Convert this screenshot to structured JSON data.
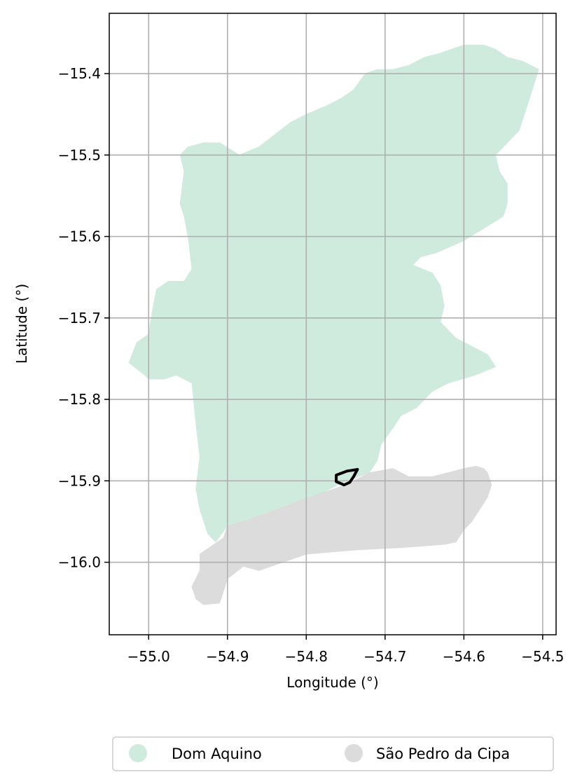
{
  "chart_data": {
    "type": "map",
    "xlabel": "Longitude (°)",
    "ylabel": "Latitude (°)",
    "xlim": [
      -55.05,
      -54.483
    ],
    "ylim": [
      -16.089,
      -15.326
    ],
    "grid": true,
    "x_ticks": [
      {
        "value": -55.0,
        "label": "−55.0"
      },
      {
        "value": -54.9,
        "label": "−54.9"
      },
      {
        "value": -54.8,
        "label": "−54.8"
      },
      {
        "value": -54.7,
        "label": "−54.7"
      },
      {
        "value": -54.6,
        "label": "−54.6"
      },
      {
        "value": -54.5,
        "label": "−54.5"
      }
    ],
    "y_ticks": [
      {
        "value": -15.4,
        "label": "−15.4"
      },
      {
        "value": -15.5,
        "label": "−15.5"
      },
      {
        "value": -15.6,
        "label": "−15.6"
      },
      {
        "value": -15.7,
        "label": "−15.7"
      },
      {
        "value": -15.8,
        "label": "−15.8"
      },
      {
        "value": -15.9,
        "label": "−15.9"
      },
      {
        "value": -16.0,
        "label": "−16.0"
      }
    ],
    "legend_position": "bottom-center",
    "regions": [
      {
        "name": "Dom Aquino",
        "color": "#cfebde",
        "outline": [
          [
            -54.95,
            -15.49
          ],
          [
            -54.93,
            -15.485
          ],
          [
            -54.91,
            -15.485
          ],
          [
            -54.885,
            -15.5
          ],
          [
            -54.86,
            -15.49
          ],
          [
            -54.84,
            -15.475
          ],
          [
            -54.82,
            -15.46
          ],
          [
            -54.8,
            -15.45
          ],
          [
            -54.775,
            -15.44
          ],
          [
            -54.755,
            -15.43
          ],
          [
            -54.74,
            -15.42
          ],
          [
            -54.725,
            -15.4
          ],
          [
            -54.71,
            -15.395
          ],
          [
            -54.69,
            -15.395
          ],
          [
            -54.67,
            -15.39
          ],
          [
            -54.65,
            -15.38
          ],
          [
            -54.63,
            -15.375
          ],
          [
            -54.6,
            -15.365
          ],
          [
            -54.575,
            -15.365
          ],
          [
            -54.56,
            -15.37
          ],
          [
            -54.545,
            -15.38
          ],
          [
            -54.525,
            -15.385
          ],
          [
            -54.505,
            -15.395
          ],
          [
            -54.51,
            -15.41
          ],
          [
            -54.52,
            -15.44
          ],
          [
            -54.53,
            -15.47
          ],
          [
            -54.55,
            -15.49
          ],
          [
            -54.56,
            -15.5
          ],
          [
            -54.555,
            -15.52
          ],
          [
            -54.545,
            -15.535
          ],
          [
            -54.545,
            -15.56
          ],
          [
            -54.55,
            -15.575
          ],
          [
            -54.575,
            -15.59
          ],
          [
            -54.6,
            -15.605
          ],
          [
            -54.635,
            -15.62
          ],
          [
            -54.655,
            -15.625
          ],
          [
            -54.665,
            -15.635
          ],
          [
            -54.64,
            -15.645
          ],
          [
            -54.63,
            -15.66
          ],
          [
            -54.625,
            -15.685
          ],
          [
            -54.63,
            -15.705
          ],
          [
            -54.61,
            -15.725
          ],
          [
            -54.59,
            -15.735
          ],
          [
            -54.57,
            -15.745
          ],
          [
            -54.56,
            -15.76
          ],
          [
            -54.585,
            -15.77
          ],
          [
            -54.62,
            -15.78
          ],
          [
            -54.64,
            -15.79
          ],
          [
            -54.66,
            -15.81
          ],
          [
            -54.68,
            -15.82
          ],
          [
            -54.69,
            -15.835
          ],
          [
            -54.705,
            -15.855
          ],
          [
            -54.71,
            -15.875
          ],
          [
            -54.72,
            -15.89
          ],
          [
            -54.75,
            -15.9
          ],
          [
            -54.78,
            -15.915
          ],
          [
            -54.81,
            -15.925
          ],
          [
            -54.85,
            -15.94
          ],
          [
            -54.88,
            -15.95
          ],
          [
            -54.9,
            -15.955
          ],
          [
            -54.915,
            -15.975
          ],
          [
            -54.925,
            -15.965
          ],
          [
            -54.935,
            -15.935
          ],
          [
            -54.94,
            -15.91
          ],
          [
            -54.935,
            -15.87
          ],
          [
            -54.94,
            -15.83
          ],
          [
            -54.945,
            -15.78
          ],
          [
            -54.965,
            -15.77
          ],
          [
            -54.98,
            -15.775
          ],
          [
            -55.0,
            -15.775
          ],
          [
            -55.005,
            -15.77
          ],
          [
            -55.025,
            -15.755
          ],
          [
            -55.015,
            -15.73
          ],
          [
            -55.0,
            -15.72
          ],
          [
            -54.995,
            -15.69
          ],
          [
            -54.99,
            -15.665
          ],
          [
            -54.975,
            -15.655
          ],
          [
            -54.955,
            -15.655
          ],
          [
            -54.945,
            -15.64
          ],
          [
            -54.95,
            -15.6
          ],
          [
            -54.955,
            -15.575
          ],
          [
            -54.96,
            -15.56
          ],
          [
            -54.955,
            -15.52
          ],
          [
            -54.96,
            -15.5
          ]
        ]
      },
      {
        "name": "São Pedro da Cipa",
        "color": "#dcdcdc",
        "outline": [
          [
            -54.9,
            -15.955
          ],
          [
            -54.88,
            -15.95
          ],
          [
            -54.85,
            -15.94
          ],
          [
            -54.81,
            -15.925
          ],
          [
            -54.78,
            -15.915
          ],
          [
            -54.75,
            -15.905
          ],
          [
            -54.72,
            -15.89
          ],
          [
            -54.69,
            -15.885
          ],
          [
            -54.67,
            -15.895
          ],
          [
            -54.64,
            -15.895
          ],
          [
            -54.62,
            -15.89
          ],
          [
            -54.6,
            -15.885
          ],
          [
            -54.585,
            -15.882
          ],
          [
            -54.575,
            -15.885
          ],
          [
            -54.57,
            -15.89
          ],
          [
            -54.565,
            -15.905
          ],
          [
            -54.57,
            -15.92
          ],
          [
            -54.58,
            -15.935
          ],
          [
            -54.59,
            -15.95
          ],
          [
            -54.6,
            -15.96
          ],
          [
            -54.61,
            -15.975
          ],
          [
            -54.625,
            -15.978
          ],
          [
            -54.68,
            -15.982
          ],
          [
            -54.74,
            -15.985
          ],
          [
            -54.8,
            -15.99
          ],
          [
            -54.83,
            -16.0
          ],
          [
            -54.86,
            -16.01
          ],
          [
            -54.88,
            -16.005
          ],
          [
            -54.9,
            -16.02
          ],
          [
            -54.91,
            -16.05
          ],
          [
            -54.93,
            -16.052
          ],
          [
            -54.94,
            -16.045
          ],
          [
            -54.945,
            -16.03
          ],
          [
            -54.935,
            -16.01
          ],
          [
            -54.935,
            -15.99
          ],
          [
            -54.92,
            -15.98
          ],
          [
            -54.905,
            -15.97
          ]
        ]
      }
    ],
    "highlight_outline": {
      "color": "#000000",
      "points": [
        [
          -54.762,
          -15.893
        ],
        [
          -54.748,
          -15.888
        ],
        [
          -54.735,
          -15.886
        ],
        [
          -54.74,
          -15.895
        ],
        [
          -54.745,
          -15.902
        ],
        [
          -54.752,
          -15.905
        ],
        [
          -54.762,
          -15.901
        ]
      ]
    },
    "legend": [
      {
        "label": "Dom Aquino",
        "color": "#cfebde"
      },
      {
        "label": "São Pedro da Cipa",
        "color": "#dcdcdc"
      }
    ]
  }
}
